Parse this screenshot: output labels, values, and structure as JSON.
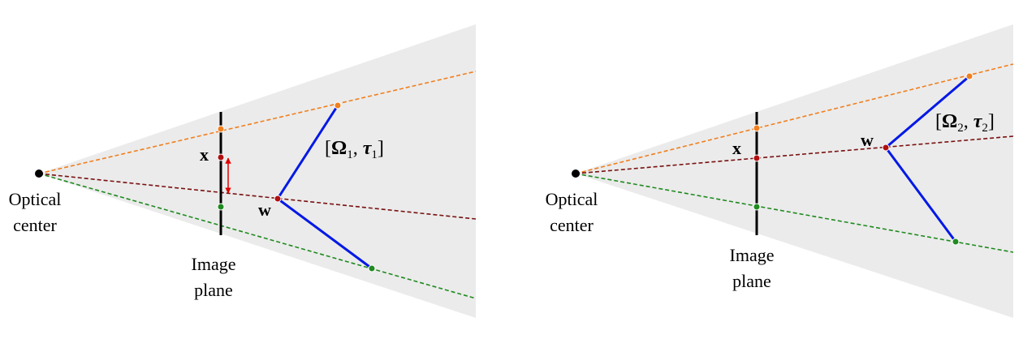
{
  "panels": [
    {
      "optical_center": "Optical\ncenter",
      "image_plane": "Image\nplane",
      "x_label": "x",
      "w_label": "w",
      "pose": {
        "omega": "Ω",
        "sub": "1",
        "tau": "τ"
      }
    },
    {
      "optical_center": "Optical\ncenter",
      "image_plane": "Image\nplane",
      "x_label": "x",
      "w_label": "w",
      "pose": {
        "omega": "Ω",
        "sub": "2",
        "tau": "τ"
      }
    }
  ],
  "colors": {
    "cone_fill": "#ebebeb",
    "ray_top": "#f07f1e",
    "ray_mid": "#7a1010",
    "ray_bottom": "#1f8a1f",
    "segment": "#0018e6",
    "reprojection_arrow": "#e00000",
    "plane": "#000000"
  }
}
